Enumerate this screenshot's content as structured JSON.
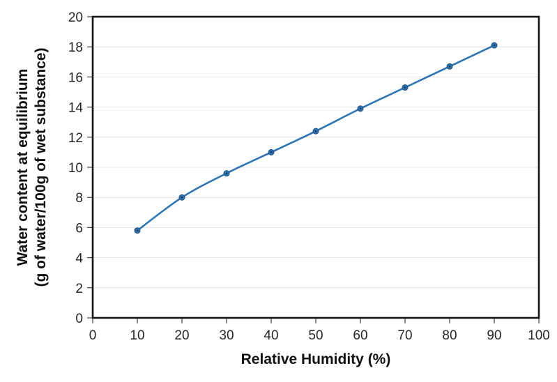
{
  "chart_data": {
    "type": "line",
    "title": "",
    "xlabel": "Relative Humidity (%)",
    "ylabel_line1": "Water content at equilibrium",
    "ylabel_line2": "(g of water/100g of wet substance)",
    "x": [
      10,
      20,
      30,
      40,
      50,
      60,
      70,
      80,
      90
    ],
    "values": [
      5.8,
      8.0,
      9.6,
      11.0,
      12.4,
      13.9,
      15.3,
      16.7,
      18.1
    ],
    "series": [
      {
        "name": "Water content at equilibrium",
        "x": [
          10,
          20,
          30,
          40,
          50,
          60,
          70,
          80,
          90
        ],
        "values": [
          5.8,
          8.0,
          9.6,
          11.0,
          12.4,
          13.9,
          15.3,
          16.7,
          18.1
        ]
      }
    ],
    "xlim": [
      0,
      100
    ],
    "ylim": [
      0,
      20
    ],
    "x_ticks": [
      0,
      10,
      20,
      30,
      40,
      50,
      60,
      70,
      80,
      90,
      100
    ],
    "y_ticks": [
      0,
      2,
      4,
      6,
      8,
      10,
      12,
      14,
      16,
      18,
      20
    ],
    "grid": "horizontal-only",
    "legend": "none",
    "line_smoothed": true,
    "colors": {
      "line": "#2E75B6",
      "marker_fill": "#2E75B6",
      "marker_edge": "#1F4E79",
      "marker_center": "#16395C",
      "gridline": "#E3E3E3",
      "axis_border": "#151515",
      "tick": "#404040",
      "tick_label": "#262626",
      "background": "#FFFFFF"
    }
  }
}
